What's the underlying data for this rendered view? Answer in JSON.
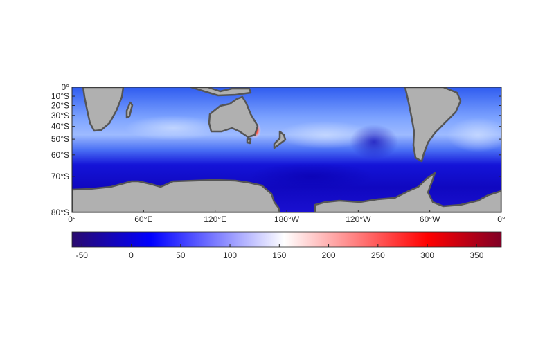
{
  "map": {
    "lat_ticks": [
      {
        "label": "0°",
        "lat": 0
      },
      {
        "label": "10°S",
        "lat": -10
      },
      {
        "label": "20°S",
        "lat": -20
      },
      {
        "label": "30°S",
        "lat": -30
      },
      {
        "label": "40°S",
        "lat": -40
      },
      {
        "label": "50°S",
        "lat": -50
      },
      {
        "label": "60°S",
        "lat": -60
      },
      {
        "label": "70°S",
        "lat": -70
      },
      {
        "label": "80°S",
        "lat": -80
      }
    ],
    "lon_ticks": [
      {
        "label": "0°",
        "lon": 0
      },
      {
        "label": "60°E",
        "lon": 60
      },
      {
        "label": "120°E",
        "lon": 120
      },
      {
        "label": "180°W",
        "lon": 180
      },
      {
        "label": "120°W",
        "lon": 240
      },
      {
        "label": "60°W",
        "lon": 300
      },
      {
        "label": "0°",
        "lon": 360
      }
    ],
    "extent": {
      "lon": [
        0,
        360
      ],
      "lat": [
        -80,
        0
      ]
    },
    "land_color": "#b0b0b0",
    "coast_color": "#555555"
  },
  "colorbar": {
    "range": [
      -60,
      375
    ],
    "ticks": [
      {
        "label": "-50",
        "value": -50
      },
      {
        "label": "0",
        "value": 0
      },
      {
        "label": "50",
        "value": 50
      },
      {
        "label": "100",
        "value": 100
      },
      {
        "label": "150",
        "value": 150
      },
      {
        "label": "200",
        "value": 200
      },
      {
        "label": "250",
        "value": 250
      },
      {
        "label": "300",
        "value": 300
      },
      {
        "label": "350",
        "value": 350
      }
    ],
    "colormap": [
      {
        "value": -60,
        "color": "#2a0a6e"
      },
      {
        "value": 20,
        "color": "#0000ff"
      },
      {
        "value": 155,
        "color": "#ffffff"
      },
      {
        "value": 300,
        "color": "#ff0000"
      },
      {
        "value": 375,
        "color": "#800026"
      }
    ]
  }
}
